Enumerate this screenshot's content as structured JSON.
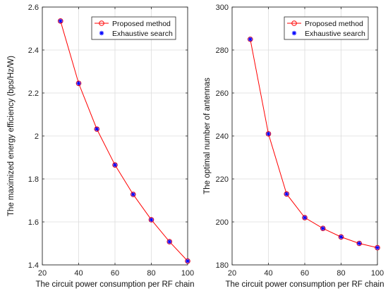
{
  "chart_data": [
    {
      "type": "line",
      "xlabel": "The circuit power consumption per RF chain",
      "ylabel": "The maximized energy efficiency (bps/Hz/W)",
      "xlim": [
        20,
        100
      ],
      "ylim": [
        1.4,
        2.6
      ],
      "xticks": [
        20,
        40,
        60,
        80,
        100
      ],
      "yticks": [
        1.4,
        1.6,
        1.8,
        2.0,
        2.2,
        2.4,
        2.6
      ],
      "ytick_labels": [
        "1.4",
        "1.6",
        "1.8",
        "2",
        "2.2",
        "2.4",
        "2.6"
      ],
      "xtick_labels": [
        "20",
        "40",
        "60",
        "80",
        "100"
      ],
      "grid": true,
      "legend_position": "top-right",
      "x": [
        30,
        40,
        50,
        60,
        70,
        80,
        90,
        100
      ],
      "series": [
        {
          "name": "Proposed method",
          "values": [
            2.535,
            2.245,
            2.032,
            1.865,
            1.728,
            1.61,
            1.508,
            1.418
          ],
          "color": "#ff0000",
          "marker": "circle",
          "line": true
        },
        {
          "name": "Exhaustive search",
          "values": [
            2.535,
            2.245,
            2.032,
            1.865,
            1.728,
            1.61,
            1.508,
            1.418
          ],
          "color": "#0000ff",
          "marker": "asterisk",
          "line": false
        }
      ]
    },
    {
      "type": "line",
      "xlabel": "The circuit power consumption per RF chain",
      "ylabel": "The optimal number of antennas",
      "xlim": [
        20,
        100
      ],
      "ylim": [
        180,
        300
      ],
      "xticks": [
        20,
        40,
        60,
        80,
        100
      ],
      "yticks": [
        180,
        200,
        220,
        240,
        260,
        280,
        300
      ],
      "ytick_labels": [
        "180",
        "200",
        "220",
        "240",
        "260",
        "280",
        "300"
      ],
      "xtick_labels": [
        "20",
        "40",
        "60",
        "80",
        "100"
      ],
      "grid": true,
      "legend_position": "top-right",
      "x": [
        30,
        40,
        50,
        60,
        70,
        80,
        90,
        100
      ],
      "series": [
        {
          "name": "Proposed method",
          "values": [
            285,
            241,
            213,
            202,
            197,
            193,
            190,
            188
          ],
          "color": "#ff0000",
          "marker": "circle",
          "line": true
        },
        {
          "name": "Exhaustive search",
          "values": [
            285,
            241,
            213,
            202,
            197,
            193,
            190,
            188
          ],
          "color": "#0000ff",
          "marker": "asterisk",
          "line": false
        }
      ]
    }
  ]
}
